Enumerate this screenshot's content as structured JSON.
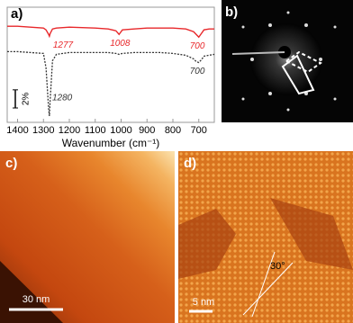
{
  "chart_data": {
    "type": "line",
    "panel_label": "a)",
    "x_label": "Wavenumber (cm⁻¹)",
    "x": [
      1440,
      1400,
      1350,
      1300,
      1290,
      1280,
      1277,
      1274,
      1265,
      1250,
      1200,
      1100,
      1050,
      1020,
      1008,
      995,
      950,
      900,
      850,
      800,
      750,
      720,
      710,
      700,
      690,
      680,
      660,
      640
    ],
    "series": [
      {
        "color": "#e8282b",
        "dash": false,
        "values": [
          10.6,
          10.6,
          10.5,
          10.4,
          10.2,
          9.7,
          9.5,
          9.8,
          10.3,
          10.4,
          10.5,
          10.4,
          10.3,
          10.1,
          9.7,
          10.2,
          10.3,
          10.4,
          10.4,
          10.4,
          10.3,
          10.0,
          9.7,
          9.4,
          9.8,
          10.2,
          10.3,
          10.3
        ],
        "annotations": [
          {
            "text": "1277",
            "x": 1277
          },
          {
            "text": "1008",
            "x": 1008
          },
          {
            "text": "700",
            "x": 700
          }
        ]
      },
      {
        "color": "#333333",
        "dash": true,
        "values": [
          7.8,
          7.8,
          7.7,
          7.6,
          6.0,
          1.5,
          0.7,
          2.5,
          6.8,
          7.5,
          7.7,
          7.7,
          7.7,
          7.6,
          7.5,
          7.6,
          7.7,
          7.7,
          7.7,
          7.6,
          7.4,
          7.0,
          6.7,
          6.6,
          6.9,
          7.3,
          7.4,
          7.5
        ],
        "annotations": [
          {
            "text": "1280",
            "x": 1280
          },
          {
            "text": "700",
            "x": 700
          }
        ]
      }
    ],
    "xlim": [
      1440,
      640
    ],
    "xticks": [
      1400,
      1300,
      1200,
      1100,
      1000,
      900,
      800,
      700
    ],
    "ylim": [
      0,
      12.7
    ],
    "scale_bar": {
      "label": "2%",
      "value": 2
    }
  },
  "panels": {
    "b": {
      "label": "b)"
    },
    "c": {
      "label": "c)",
      "scale": "30 nm"
    },
    "d": {
      "label": "d)",
      "scale": "5 nm",
      "angle": "30°"
    }
  }
}
